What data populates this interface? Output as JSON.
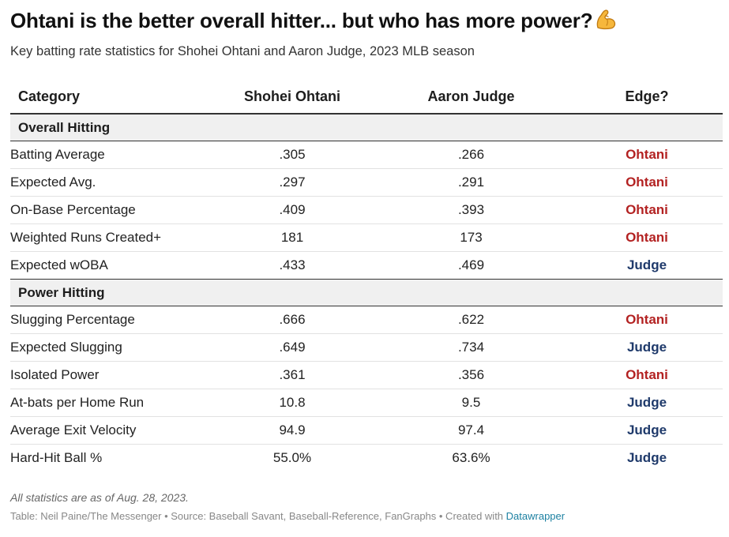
{
  "title": "Ohtani is the better overall hitter... but who has more power?",
  "title_icon": "flexed-biceps-emoji",
  "subtitle": "Key batting rate statistics for Shohei Ohtani and Aaron Judge, 2023 MLB season",
  "colors": {
    "ohtani": "#b32222",
    "judge": "#1f3a6b",
    "group_background": "#f0f0f0",
    "link": "#1d81a2"
  },
  "chart_data": {
    "type": "table",
    "columns": [
      "Category",
      "Shohei Ohtani",
      "Aaron Judge",
      "Edge?"
    ],
    "groups": [
      {
        "name": "Overall Hitting",
        "rows": [
          {
            "category": "Batting Average",
            "ohtani": ".305",
            "judge": ".266",
            "edge": "Ohtani"
          },
          {
            "category": "Expected Avg.",
            "ohtani": ".297",
            "judge": ".291",
            "edge": "Ohtani"
          },
          {
            "category": "On-Base Percentage",
            "ohtani": ".409",
            "judge": ".393",
            "edge": "Ohtani"
          },
          {
            "category": "Weighted Runs Created+",
            "ohtani": "181",
            "judge": "173",
            "edge": "Ohtani"
          },
          {
            "category": "Expected wOBA",
            "ohtani": ".433",
            "judge": ".469",
            "edge": "Judge"
          }
        ]
      },
      {
        "name": "Power Hitting",
        "rows": [
          {
            "category": "Slugging Percentage",
            "ohtani": ".666",
            "judge": ".622",
            "edge": "Ohtani"
          },
          {
            "category": "Expected Slugging",
            "ohtani": ".649",
            "judge": ".734",
            "edge": "Judge"
          },
          {
            "category": "Isolated Power",
            "ohtani": ".361",
            "judge": ".356",
            "edge": "Ohtani"
          },
          {
            "category": "At-bats per Home Run",
            "ohtani": "10.8",
            "judge": "9.5",
            "edge": "Judge"
          },
          {
            "category": "Average Exit Velocity",
            "ohtani": "94.9",
            "judge": "97.4",
            "edge": "Judge"
          },
          {
            "category": "Hard-Hit Ball %",
            "ohtani": "55.0%",
            "judge": "63.6%",
            "edge": "Judge"
          }
        ]
      }
    ]
  },
  "notes": "All statistics are as of Aug. 28, 2023.",
  "footer": {
    "text": "Table: Neil Paine/The Messenger • Source: Baseball Savant, Baseball-Reference, FanGraphs • Created with",
    "link_label": "Datawrapper"
  }
}
